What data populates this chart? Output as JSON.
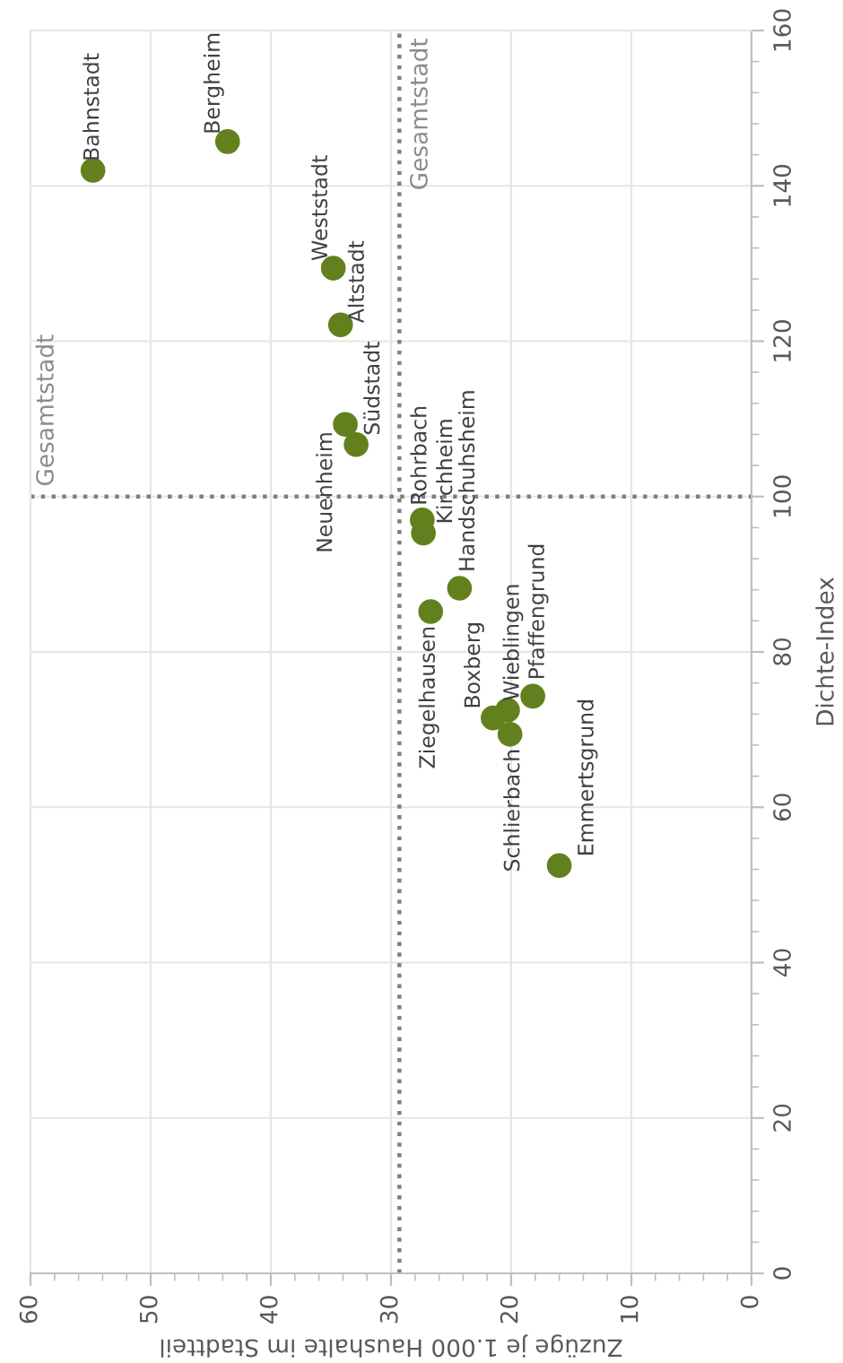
{
  "chart_data": {
    "type": "scatter",
    "xlabel": "Zuzüge je 1.000 Haushalte im Stadtteil",
    "ylabel": "Dichte-Index",
    "xlim": [
      60,
      0
    ],
    "xticks": [
      60,
      50,
      40,
      30,
      20,
      10,
      0
    ],
    "ylim": [
      0,
      160
    ],
    "yticks": [
      0,
      20,
      40,
      60,
      80,
      100,
      120,
      140,
      160
    ],
    "grid": true,
    "legend": false,
    "marker": "circle",
    "ref_lines": [
      {
        "axis": "x",
        "value": 29.3,
        "label": "Gesamtstadt",
        "color": "#7f7f7f",
        "line_style": "dotted"
      },
      {
        "axis": "y",
        "value": 100,
        "label": "Gesamtstadt",
        "color": "#7f7f7f",
        "line_style": "dotted"
      }
    ],
    "series": [
      {
        "name": "Bahnstadt",
        "color": "#63801e",
        "x": [
          54.8
        ],
        "values": [
          142.0
        ]
      },
      {
        "name": "Bergheim",
        "color": "#63801e",
        "x": [
          43.6
        ],
        "values": [
          145.7
        ]
      },
      {
        "name": "Weststadt",
        "color": "#63801e",
        "x": [
          34.8
        ],
        "values": [
          129.4
        ]
      },
      {
        "name": "Altstadt",
        "color": "#63801e",
        "x": [
          34.2
        ],
        "values": [
          122.1
        ]
      },
      {
        "name": "Neuenheim",
        "color": "#63801e",
        "x": [
          33.8
        ],
        "values": [
          109.3
        ]
      },
      {
        "name": "Südstadt",
        "color": "#63801e",
        "x": [
          32.9
        ],
        "values": [
          106.7
        ]
      },
      {
        "name": "Rohrbach",
        "color": "#63801e",
        "x": [
          27.4
        ],
        "values": [
          97.0
        ]
      },
      {
        "name": "Kirchheim",
        "color": "#63801e",
        "x": [
          27.3
        ],
        "values": [
          95.3
        ]
      },
      {
        "name": "Handschuhsheim",
        "color": "#63801e",
        "x": [
          24.3
        ],
        "values": [
          88.2
        ]
      },
      {
        "name": "Ziegelhausen",
        "color": "#63801e",
        "x": [
          26.7
        ],
        "values": [
          85.2
        ]
      },
      {
        "name": "Boxberg",
        "color": "#63801e",
        "x": [
          21.5
        ],
        "values": [
          71.5
        ]
      },
      {
        "name": "Wieblingen",
        "color": "#63801e",
        "x": [
          20.3
        ],
        "values": [
          72.5
        ]
      },
      {
        "name": "Pfaffengrund",
        "color": "#63801e",
        "x": [
          18.2
        ],
        "values": [
          74.3
        ]
      },
      {
        "name": "Schlierbach",
        "color": "#63801e",
        "x": [
          20.1
        ],
        "values": [
          69.4
        ]
      },
      {
        "name": "Emmertsgrund",
        "color": "#63801e",
        "x": [
          16.0
        ],
        "values": [
          52.5
        ]
      }
    ]
  }
}
